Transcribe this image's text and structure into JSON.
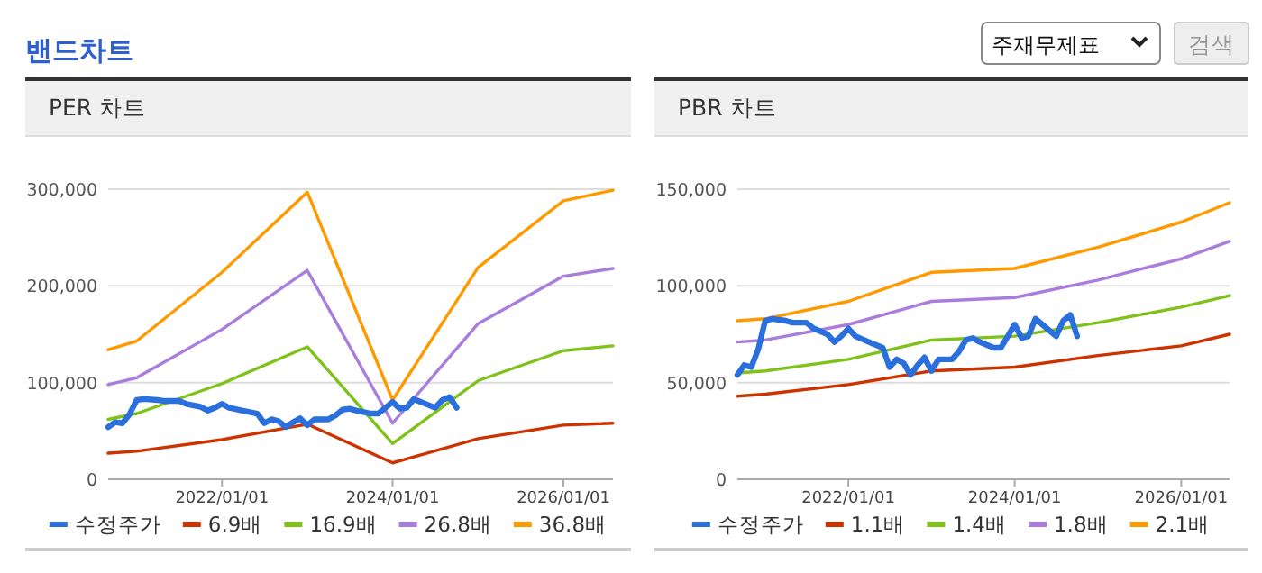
{
  "chart_data": [
    {
      "type": "other",
      "title": "밴드차트",
      "annotations": [
        "주재무제표",
        "검색"
      ]
    },
    {
      "type": "line",
      "title": "PER 차트",
      "legend": "bottom",
      "grid": "y",
      "xlim": [
        "2020-09",
        "2026-08"
      ],
      "xticks": [
        {
          "value": "2022-01-01",
          "label": "2022/01/01"
        },
        {
          "value": "2024-01-01",
          "label": "2024/01/01"
        },
        {
          "value": "2026-01-01",
          "label": "2026/01/01"
        }
      ],
      "ylim": [
        0,
        300000
      ],
      "yticks": [
        0,
        {
          "value": 100000,
          "label": "100,000"
        },
        {
          "value": 200000,
          "label": "200,000"
        },
        {
          "value": 300000,
          "label": "300,000"
        }
      ],
      "x": [
        "2020-09",
        "2021-01",
        "2022-01",
        "2023-01",
        "2024-01",
        "2025-01",
        "2026-01",
        "2026-08"
      ],
      "series": [
        {
          "name": "수정주가",
          "color": "#2a6fdb",
          "x": [
            "2020-09",
            "2020-10",
            "2020-11",
            "2020-12",
            "2021-01",
            "2021-02",
            "2021-04",
            "2021-05",
            "2021-07",
            "2021-08",
            "2021-10",
            "2021-11",
            "2021-12",
            "2022-01",
            "2022-02",
            "2022-04",
            "2022-06",
            "2022-07",
            "2022-08",
            "2022-09",
            "2022-10",
            "2022-11",
            "2022-12",
            "2023-01",
            "2023-02",
            "2023-04",
            "2023-05",
            "2023-06",
            "2023-07",
            "2023-08",
            "2023-10",
            "2023-11",
            "2024-01",
            "2024-02",
            "2024-03",
            "2024-04",
            "2024-06",
            "2024-07",
            "2024-08",
            "2024-09",
            "2024-10"
          ],
          "values": [
            54000,
            59000,
            58000,
            67000,
            82000,
            83000,
            82000,
            81000,
            81000,
            78000,
            75000,
            71000,
            74000,
            78000,
            74000,
            71000,
            68000,
            58000,
            62000,
            60000,
            54000,
            59000,
            63000,
            56000,
            62000,
            62000,
            66000,
            72000,
            73000,
            71000,
            68000,
            68000,
            80000,
            73000,
            74000,
            83000,
            77000,
            74000,
            82000,
            85000,
            74000
          ]
        },
        {
          "name": "6.9배",
          "color": "#cc3300",
          "values": [
            27000,
            29000,
            41000,
            57000,
            17000,
            42000,
            56000,
            58000
          ]
        },
        {
          "name": "16.9배",
          "color": "#7ec21a",
          "values": [
            62000,
            68000,
            99000,
            137000,
            37000,
            102000,
            133000,
            138000
          ]
        },
        {
          "name": "26.8배",
          "color": "#a97ddb",
          "values": [
            98000,
            105000,
            155000,
            216000,
            58000,
            161000,
            210000,
            218000
          ]
        },
        {
          "name": "36.8배",
          "color": "#ff9900",
          "values": [
            134000,
            143000,
            214000,
            297000,
            82000,
            219000,
            288000,
            299000
          ]
        }
      ]
    },
    {
      "type": "line",
      "title": "PBR 차트",
      "legend": "bottom",
      "grid": "y",
      "xlim": [
        "2020-09",
        "2026-08"
      ],
      "xticks": [
        {
          "value": "2022-01-01",
          "label": "2022/01/01"
        },
        {
          "value": "2024-01-01",
          "label": "2024/01/01"
        },
        {
          "value": "2026-01-01",
          "label": "2026/01/01"
        }
      ],
      "ylim": [
        0,
        150000
      ],
      "yticks": [
        0,
        {
          "value": 50000,
          "label": "50,000"
        },
        {
          "value": 100000,
          "label": "100,000"
        },
        {
          "value": 150000,
          "label": "150,000"
        }
      ],
      "x": [
        "2020-09",
        "2021-01",
        "2022-01",
        "2023-01",
        "2024-01",
        "2025-01",
        "2026-01",
        "2026-08"
      ],
      "series": [
        {
          "name": "수정주가",
          "color": "#2a6fdb",
          "x": [
            "2020-09",
            "2020-10",
            "2020-11",
            "2020-12",
            "2021-01",
            "2021-02",
            "2021-04",
            "2021-05",
            "2021-07",
            "2021-08",
            "2021-10",
            "2021-11",
            "2021-12",
            "2022-01",
            "2022-02",
            "2022-04",
            "2022-06",
            "2022-07",
            "2022-08",
            "2022-09",
            "2022-10",
            "2022-11",
            "2022-12",
            "2023-01",
            "2023-02",
            "2023-04",
            "2023-05",
            "2023-06",
            "2023-07",
            "2023-08",
            "2023-10",
            "2023-11",
            "2024-01",
            "2024-02",
            "2024-03",
            "2024-04",
            "2024-06",
            "2024-07",
            "2024-08",
            "2024-09",
            "2024-10"
          ],
          "values": [
            54000,
            59000,
            58000,
            67000,
            82000,
            83000,
            82000,
            81000,
            81000,
            78000,
            75000,
            71000,
            74000,
            78000,
            74000,
            71000,
            68000,
            58000,
            62000,
            60000,
            54000,
            59000,
            63000,
            56000,
            62000,
            62000,
            66000,
            72000,
            73000,
            71000,
            68000,
            68000,
            80000,
            73000,
            74000,
            83000,
            77000,
            74000,
            82000,
            85000,
            74000
          ]
        },
        {
          "name": "1.1배",
          "color": "#cc3300",
          "values": [
            43000,
            44000,
            49000,
            56000,
            58000,
            64000,
            69000,
            75000
          ]
        },
        {
          "name": "1.4배",
          "color": "#7ec21a",
          "values": [
            55000,
            56000,
            62000,
            72000,
            74000,
            81000,
            89000,
            95000
          ]
        },
        {
          "name": "1.8배",
          "color": "#a97ddb",
          "values": [
            71000,
            72000,
            80000,
            92000,
            94000,
            103000,
            114000,
            123000
          ]
        },
        {
          "name": "2.1배",
          "color": "#ff9900",
          "values": [
            82000,
            83000,
            92000,
            107000,
            109000,
            120000,
            133000,
            143000
          ]
        }
      ]
    }
  ]
}
